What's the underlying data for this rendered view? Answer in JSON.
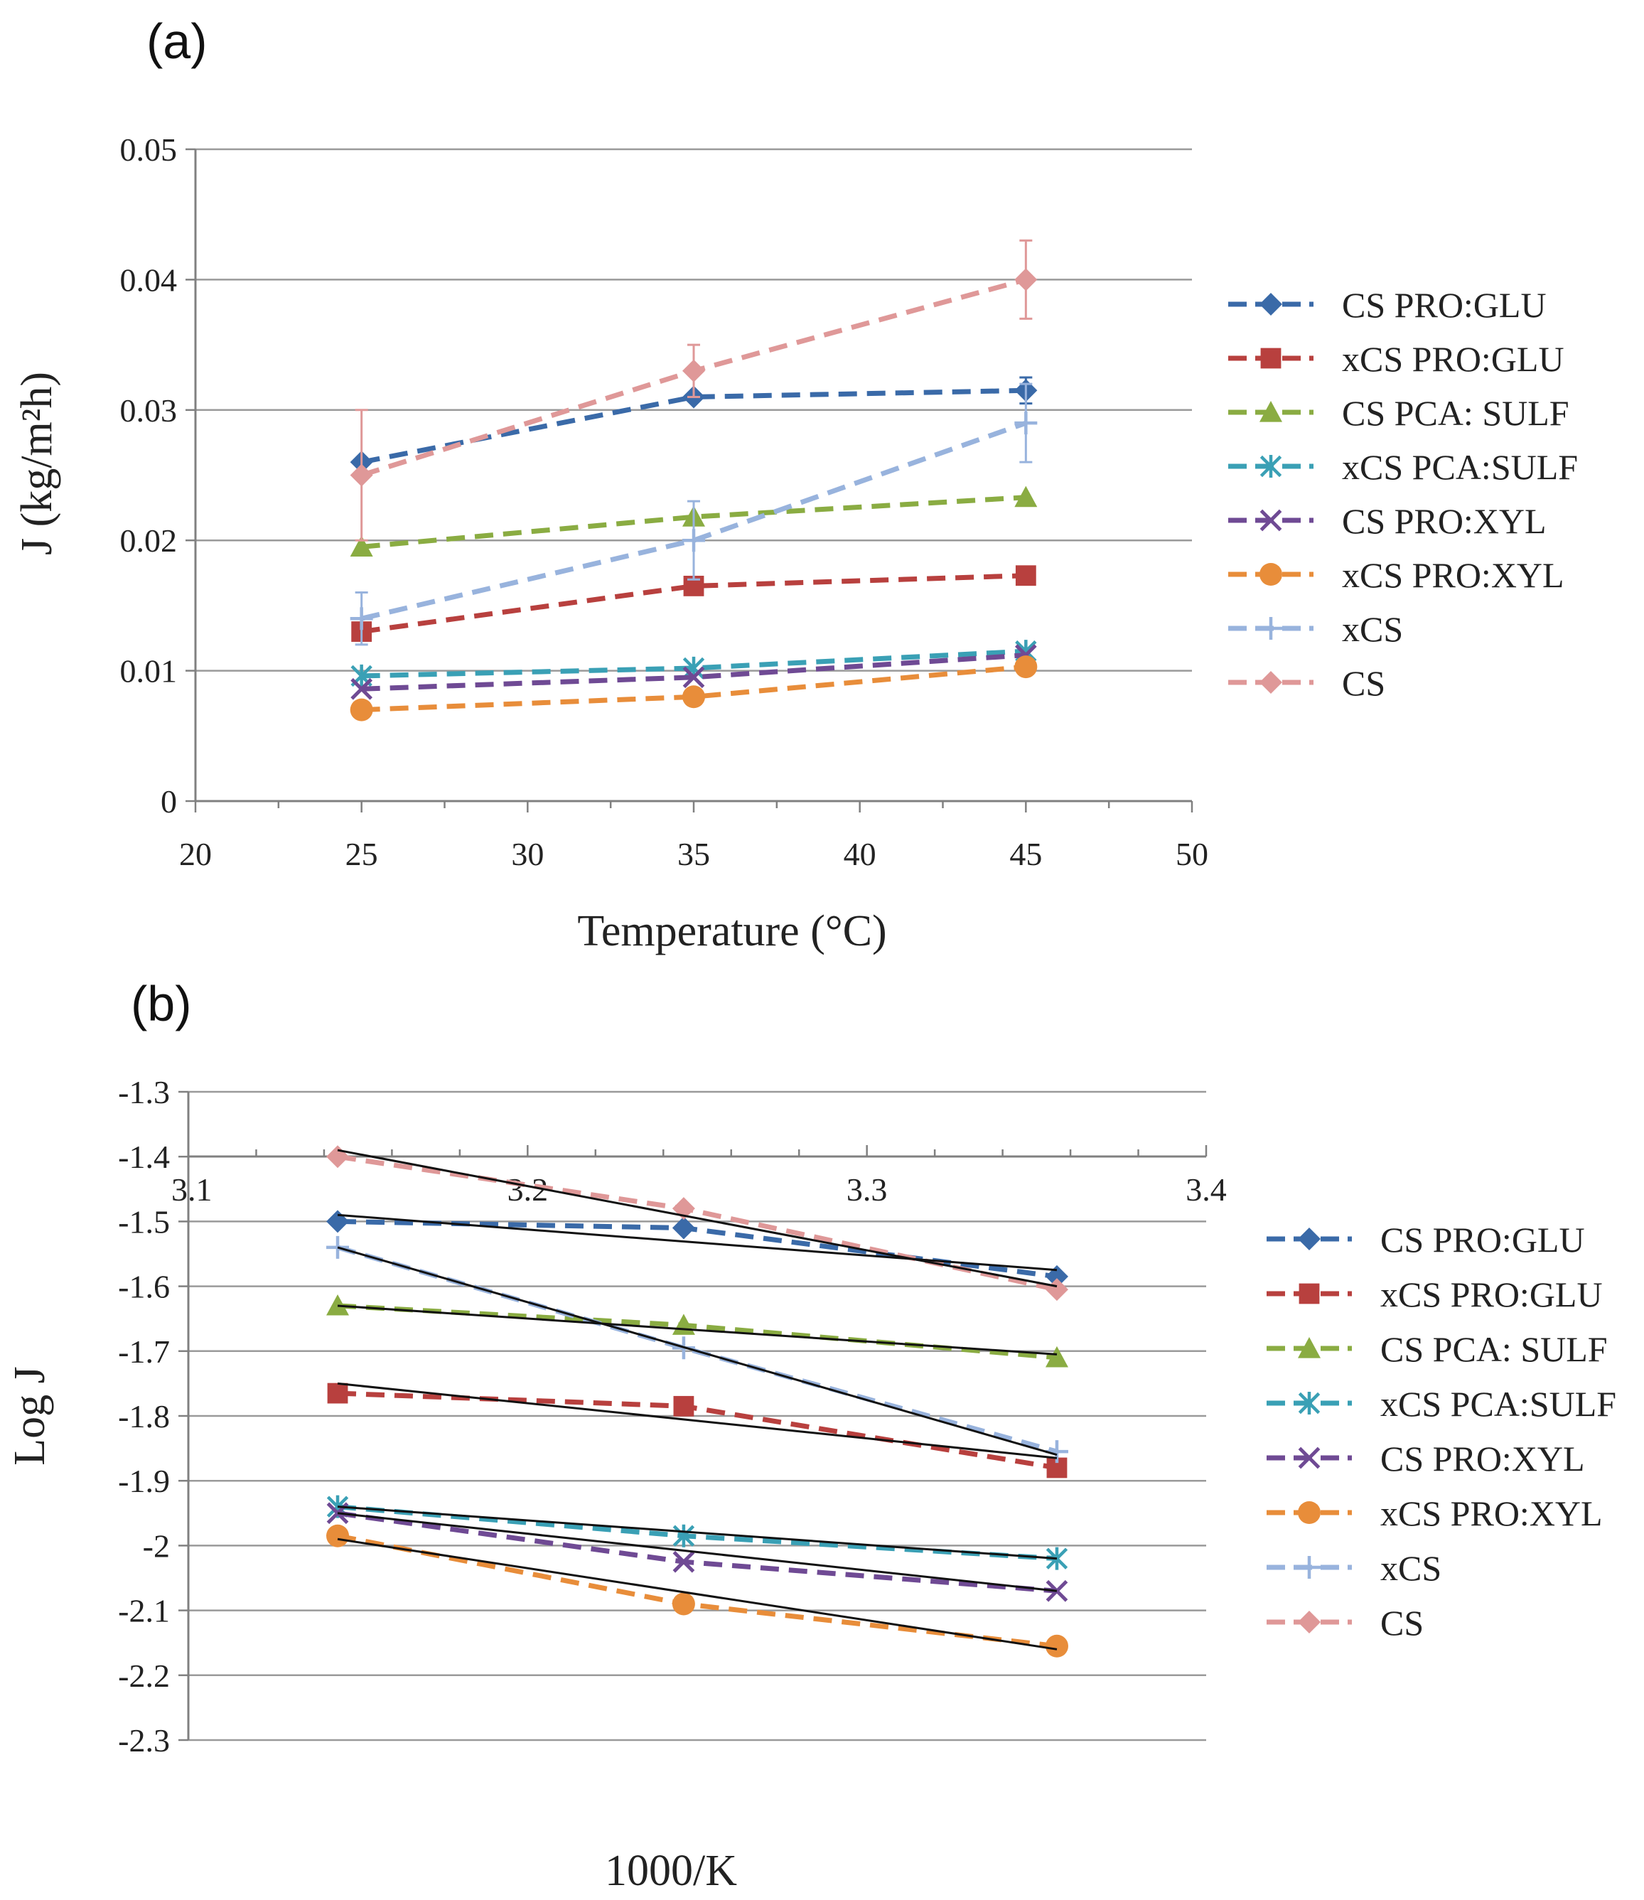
{
  "chart_data": [
    {
      "panel_label": "(a)",
      "type": "line",
      "title": "",
      "xlabel": "Temperature (°C)",
      "ylabel": "J (kg/m²h)",
      "xlim": [
        20,
        50
      ],
      "ylim": [
        0,
        0.05
      ],
      "x_ticks": [
        "20",
        "25",
        "30",
        "35",
        "40",
        "45",
        "50"
      ],
      "y_ticks": [
        "0",
        "0.01",
        "0.02",
        "0.03",
        "0.04",
        "0.05"
      ],
      "grid": "horizontal",
      "legend_position": "right",
      "x": [
        25,
        35,
        45
      ],
      "series": [
        {
          "name": "CS PRO:GLU",
          "color": "#3a6aa8",
          "marker": "diamond",
          "values": [
            0.026,
            0.031,
            0.0315
          ],
          "errors": [
            0,
            0,
            0.001
          ]
        },
        {
          "name": "xCS PRO:GLU",
          "color": "#b8403e",
          "marker": "square",
          "values": [
            0.013,
            0.0165,
            0.0173
          ],
          "errors": [
            0,
            0,
            0
          ]
        },
        {
          "name": "CS PCA: SULF",
          "color": "#8aac42",
          "marker": "triangle",
          "values": [
            0.0195,
            0.0218,
            0.0233
          ],
          "errors": [
            0,
            0,
            0
          ]
        },
        {
          "name": "xCS PCA:SULF",
          "color": "#3aa0b5",
          "marker": "asterisk",
          "values": [
            0.0096,
            0.0102,
            0.0115
          ],
          "errors": [
            0,
            0,
            0
          ]
        },
        {
          "name": "CS PRO:XYL",
          "color": "#6f4a94",
          "marker": "x",
          "values": [
            0.0086,
            0.0095,
            0.0112
          ],
          "errors": [
            0,
            0,
            0
          ]
        },
        {
          "name": "xCS PRO:XYL",
          "color": "#e88d3a",
          "marker": "circle",
          "values": [
            0.007,
            0.008,
            0.0103
          ],
          "errors": [
            0,
            0,
            0
          ]
        },
        {
          "name": "xCS",
          "color": "#98b3dd",
          "marker": "plus",
          "values": [
            0.014,
            0.02,
            0.029
          ],
          "errors": [
            0.002,
            0.003,
            0.003
          ]
        },
        {
          "name": "CS",
          "color": "#df9898",
          "marker": "diamond",
          "values": [
            0.025,
            0.033,
            0.04
          ],
          "errors": [
            0.005,
            0.002,
            0.003
          ]
        }
      ]
    },
    {
      "panel_label": "(b)",
      "type": "line",
      "title": "",
      "xlabel": "1000/K",
      "ylabel": "Log J",
      "xlim": [
        3.1,
        3.4
      ],
      "ylim": [
        -2.3,
        -1.3
      ],
      "x_ticks": [
        "3.1",
        "3.2",
        "3.3",
        "3.4"
      ],
      "y_ticks": [
        "-1.3",
        "-1.4",
        "-1.5",
        "-1.6",
        "-1.7",
        "-1.8",
        "-1.9",
        "-2",
        "-2.1",
        "-2.2",
        "-2.3"
      ],
      "x_axis_position": "top",
      "grid": "horizontal",
      "legend_position": "right",
      "x": [
        3.144,
        3.246,
        3.356
      ],
      "series": [
        {
          "name": "CS PRO:GLU",
          "color": "#3a6aa8",
          "marker": "diamond",
          "values": [
            -1.5,
            -1.51,
            -1.585
          ],
          "fit": [
            -1.49,
            -1.575
          ]
        },
        {
          "name": "xCS PRO:GLU",
          "color": "#b8403e",
          "marker": "square",
          "values": [
            -1.765,
            -1.785,
            -1.88
          ],
          "fit": [
            -1.75,
            -1.865
          ]
        },
        {
          "name": "CS PCA: SULF",
          "color": "#8aac42",
          "marker": "triangle",
          "values": [
            -1.63,
            -1.66,
            -1.71
          ],
          "fit": [
            -1.63,
            -1.705
          ]
        },
        {
          "name": "xCS PCA:SULF",
          "color": "#3aa0b5",
          "marker": "asterisk",
          "values": [
            -1.94,
            -1.985,
            -2.02
          ],
          "fit": [
            -1.94,
            -2.02
          ]
        },
        {
          "name": "CS PRO:XYL",
          "color": "#6f4a94",
          "marker": "x",
          "values": [
            -1.95,
            -2.025,
            -2.07
          ],
          "fit": [
            -1.95,
            -2.07
          ]
        },
        {
          "name": "xCS PRO:XYL",
          "color": "#e88d3a",
          "marker": "circle",
          "values": [
            -1.985,
            -2.09,
            -2.155
          ],
          "fit": [
            -1.99,
            -2.16
          ]
        },
        {
          "name": "xCS",
          "color": "#98b3dd",
          "marker": "plus",
          "values": [
            -1.54,
            -1.695,
            -1.855
          ],
          "fit": [
            -1.54,
            -1.86
          ]
        },
        {
          "name": "CS",
          "color": "#df9898",
          "marker": "diamond",
          "values": [
            -1.4,
            -1.48,
            -1.605
          ],
          "fit": [
            -1.39,
            -1.6
          ]
        }
      ]
    }
  ]
}
